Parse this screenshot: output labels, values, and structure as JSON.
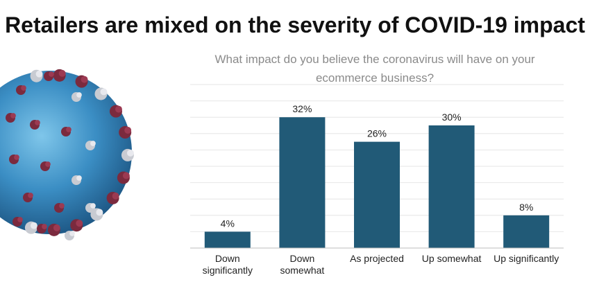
{
  "title": "Retailers are mixed on the severity of COVID-19 impact",
  "subtitle": "What impact do you believe the coronavirus will have on your ecommerce business?",
  "colors": {
    "bar": "#215a77",
    "grid": "#e6e6e6",
    "axis": "#bdbdbd"
  },
  "chart_data": {
    "type": "bar",
    "title": "What impact do you believe the coronavirus will have on your ecommerce business?",
    "categories": [
      [
        "Down",
        "significantly"
      ],
      [
        "Down",
        "somewhat"
      ],
      [
        "As projected"
      ],
      [
        "Up somewhat"
      ],
      [
        "Up significantly"
      ]
    ],
    "values": [
      4,
      32,
      26,
      30,
      8
    ],
    "value_labels": [
      "4%",
      "32%",
      "26%",
      "30%",
      "8%"
    ],
    "ylim": [
      0,
      40
    ],
    "grid": true,
    "legend": "none"
  }
}
